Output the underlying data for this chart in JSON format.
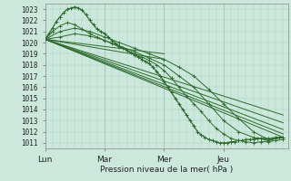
{
  "background_color": "#cce8dc",
  "grid_color": "#aaccbb",
  "line_color": "#2d6a2d",
  "ylim": [
    1010.5,
    1023.5
  ],
  "yticks": [
    1011,
    1012,
    1013,
    1014,
    1015,
    1016,
    1017,
    1018,
    1019,
    1020,
    1021,
    1022,
    1023
  ],
  "xlabel": "Pression niveau de la mer( hPa )",
  "xtick_labels": [
    "Lun",
    "Mar",
    "Mer",
    "Jeu"
  ],
  "xtick_positions": [
    0,
    48,
    96,
    144
  ],
  "xlim": [
    0,
    196
  ],
  "vline_positions": [
    48,
    96,
    144
  ],
  "detailed_line": {
    "x": [
      0,
      3,
      6,
      9,
      12,
      15,
      18,
      21,
      24,
      27,
      30,
      33,
      36,
      39,
      42,
      45,
      48,
      51,
      54,
      57,
      60,
      63,
      66,
      69,
      72,
      75,
      78,
      81,
      84,
      87,
      90,
      93,
      96,
      99,
      102,
      105,
      108,
      111,
      114,
      117,
      120,
      123,
      126,
      129,
      132,
      135,
      138,
      141,
      144,
      147,
      150,
      153,
      156,
      159,
      162,
      165,
      168,
      171,
      174,
      177,
      180,
      183,
      186,
      189,
      192
    ],
    "y": [
      1020.3,
      1020.8,
      1021.3,
      1021.9,
      1022.3,
      1022.7,
      1023.0,
      1023.1,
      1023.2,
      1023.1,
      1022.9,
      1022.5,
      1022.0,
      1021.6,
      1021.2,
      1021.0,
      1020.8,
      1020.5,
      1020.2,
      1019.9,
      1019.7,
      1019.5,
      1019.3,
      1019.1,
      1018.9,
      1018.7,
      1018.5,
      1018.3,
      1018.1,
      1017.8,
      1017.4,
      1017.0,
      1016.5,
      1016.0,
      1015.5,
      1015.0,
      1014.5,
      1014.0,
      1013.5,
      1013.0,
      1012.5,
      1012.0,
      1011.7,
      1011.5,
      1011.3,
      1011.2,
      1011.1,
      1011.0,
      1011.0,
      1011.0,
      1011.1,
      1011.1,
      1011.2,
      1011.2,
      1011.3,
      1011.3,
      1011.3,
      1011.4,
      1011.4,
      1011.4,
      1011.4,
      1011.4,
      1011.5,
      1011.5,
      1011.5
    ]
  },
  "straight_lines": [
    {
      "x0": 0,
      "y0": 1020.3,
      "x1": 192,
      "y1": 1011.5
    },
    {
      "x0": 0,
      "y0": 1020.3,
      "x1": 192,
      "y1": 1011.8
    },
    {
      "x0": 0,
      "y0": 1020.3,
      "x1": 192,
      "y1": 1012.2
    },
    {
      "x0": 0,
      "y0": 1020.3,
      "x1": 192,
      "y1": 1012.8
    },
    {
      "x0": 0,
      "y0": 1020.3,
      "x1": 192,
      "y1": 1013.5
    },
    {
      "x0": 0,
      "y0": 1020.3,
      "x1": 96,
      "y1": 1019.0
    },
    {
      "x0": 0,
      "y0": 1020.3,
      "x1": 96,
      "y1": 1018.5
    }
  ],
  "mid_lines": [
    {
      "x": [
        0,
        6,
        12,
        18,
        24,
        30,
        36,
        42,
        48,
        54,
        60,
        66,
        72,
        78,
        84,
        90,
        96,
        102,
        108,
        114,
        120,
        126,
        132,
        138,
        144,
        150,
        156,
        162,
        168,
        174,
        180,
        186,
        192
      ],
      "y": [
        1020.3,
        1021.0,
        1021.5,
        1021.8,
        1021.6,
        1021.2,
        1020.8,
        1020.5,
        1020.2,
        1019.9,
        1019.6,
        1019.3,
        1019.0,
        1018.7,
        1018.4,
        1018.0,
        1017.5,
        1016.8,
        1016.0,
        1015.2,
        1014.5,
        1013.8,
        1013.0,
        1012.3,
        1011.8,
        1011.4,
        1011.2,
        1011.1,
        1011.0,
        1011.1,
        1011.1,
        1011.2,
        1011.3
      ]
    },
    {
      "x": [
        0,
        12,
        24,
        36,
        48,
        60,
        72,
        84,
        96,
        108,
        120,
        132,
        144,
        156,
        168,
        180,
        192
      ],
      "y": [
        1020.3,
        1021.0,
        1021.3,
        1021.0,
        1020.5,
        1020.0,
        1019.5,
        1019.0,
        1018.5,
        1017.8,
        1017.0,
        1015.8,
        1014.5,
        1013.2,
        1012.0,
        1011.3,
        1011.5
      ]
    },
    {
      "x": [
        0,
        12,
        24,
        36,
        48,
        60,
        72,
        84,
        96,
        108,
        120,
        132,
        144,
        156,
        168,
        180,
        192
      ],
      "y": [
        1020.3,
        1020.5,
        1020.8,
        1020.6,
        1020.2,
        1019.7,
        1019.2,
        1018.6,
        1018.0,
        1017.0,
        1016.0,
        1014.5,
        1013.0,
        1012.0,
        1011.5,
        1011.2,
        1011.5
      ]
    }
  ]
}
